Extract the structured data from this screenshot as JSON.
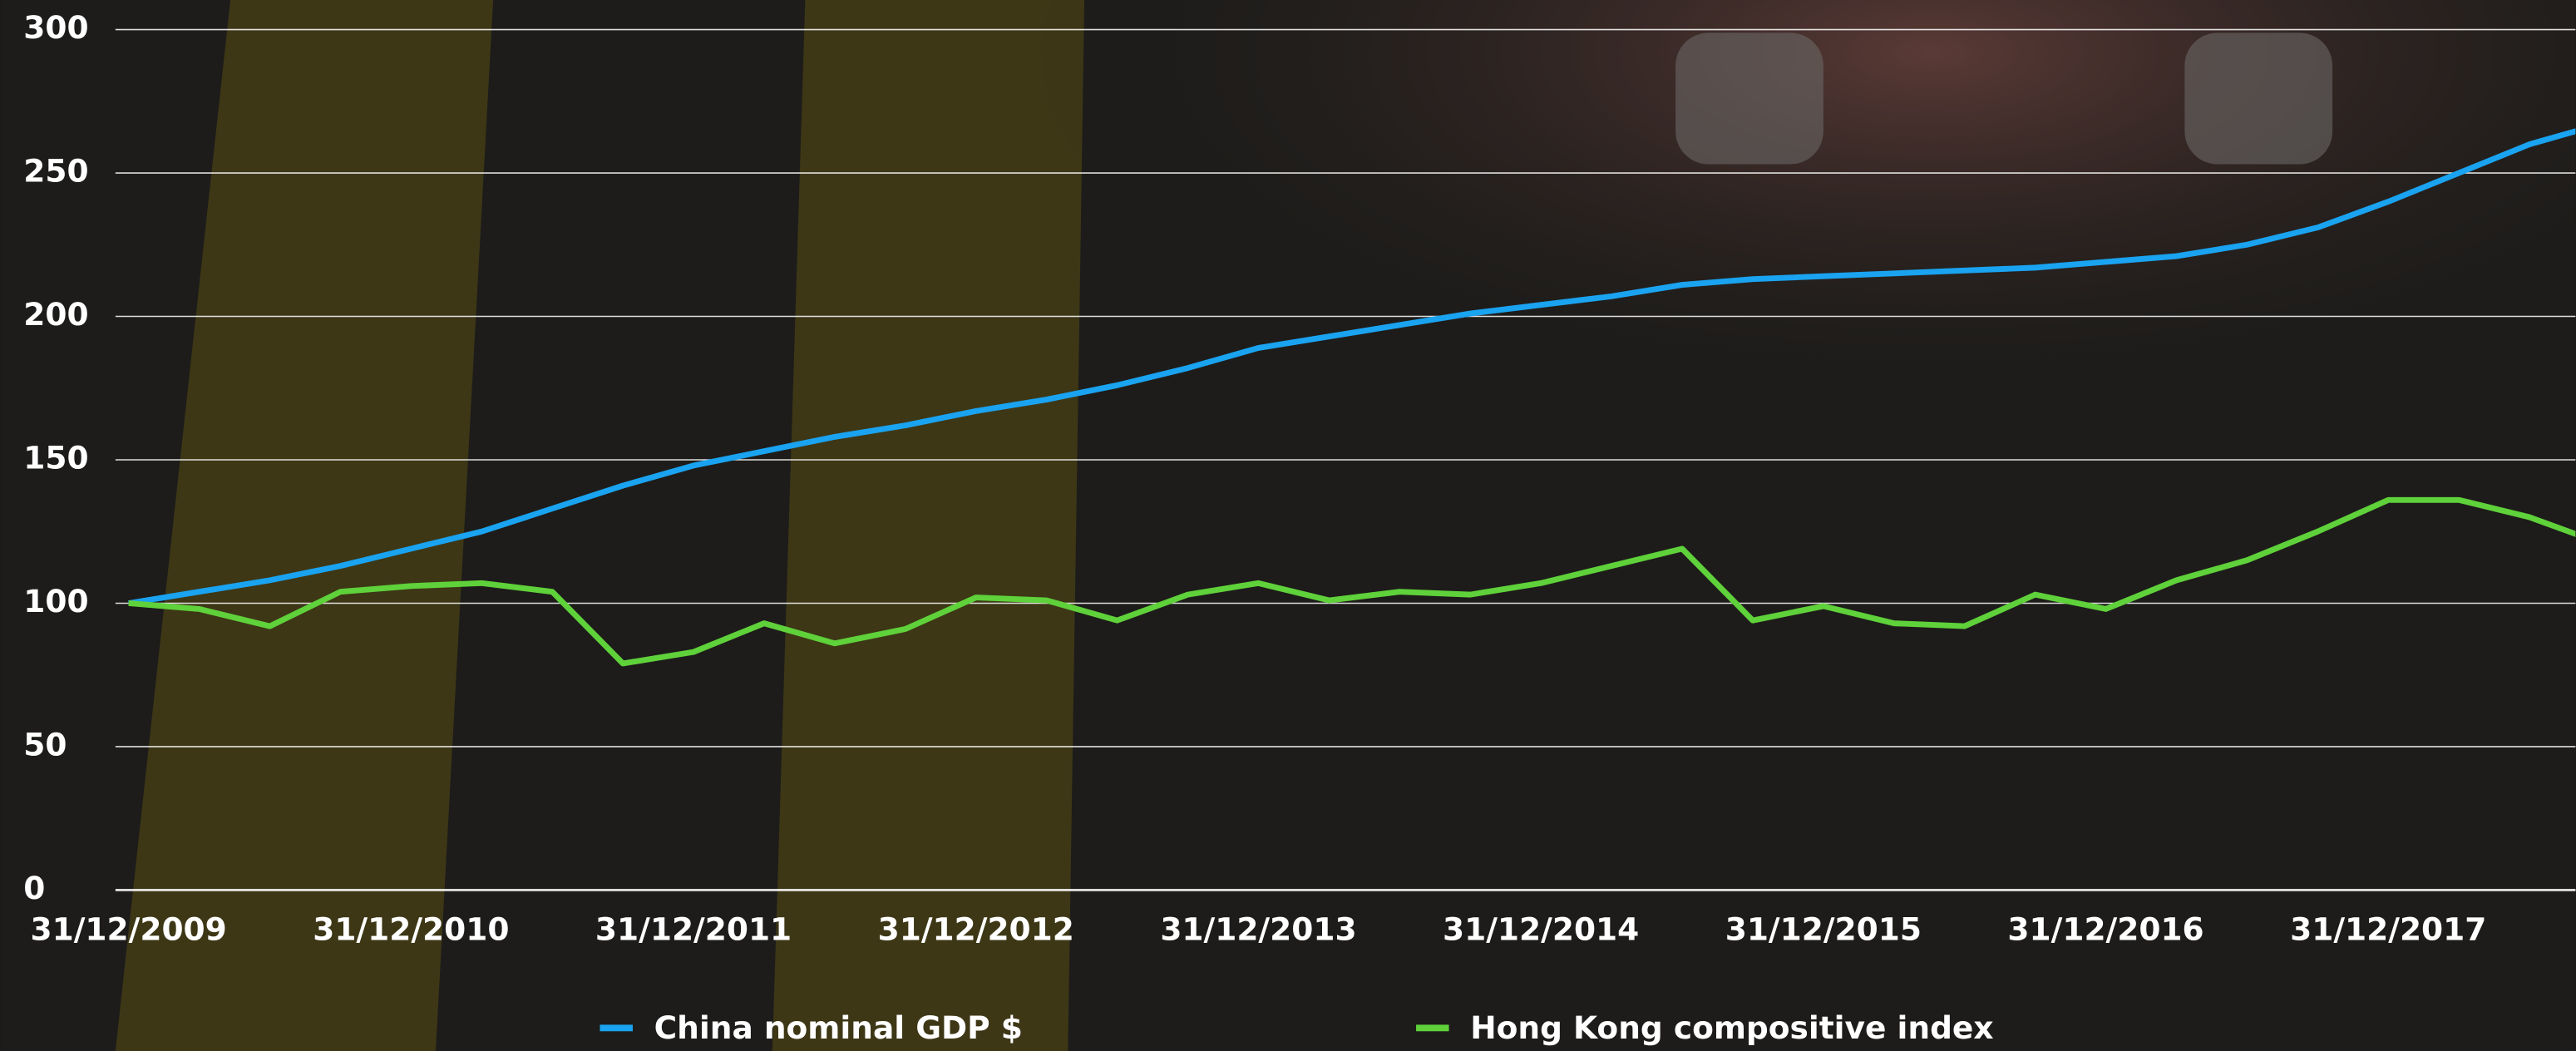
{
  "chart_data": {
    "type": "line",
    "categories": [
      "31/12/2009",
      null,
      null,
      null,
      "31/12/2010",
      null,
      null,
      null,
      "31/12/2011",
      null,
      null,
      null,
      "31/12/2012",
      null,
      null,
      null,
      "31/12/2013",
      null,
      null,
      null,
      "31/12/2014",
      null,
      null,
      null,
      "31/12/2015",
      null,
      null,
      null,
      "31/12/2016",
      null,
      null,
      null,
      "31/12/2017",
      null,
      null,
      null
    ],
    "series": [
      {
        "name": "China nominal GDP $",
        "color": "#1aa3f0",
        "values": [
          100,
          104,
          108,
          113,
          119,
          125,
          133,
          141,
          148,
          153,
          158,
          162,
          167,
          171,
          176,
          182,
          189,
          193,
          197,
          201,
          204,
          207,
          211,
          213,
          214,
          215,
          216,
          217,
          219,
          221,
          225,
          231,
          240,
          250,
          260,
          267
        ]
      },
      {
        "name": "Hong Kong compositive index",
        "color": "#5fd13a",
        "values": [
          100,
          98,
          92,
          104,
          106,
          107,
          104,
          79,
          83,
          93,
          86,
          91,
          102,
          101,
          94,
          103,
          107,
          101,
          104,
          103,
          107,
          113,
          119,
          94,
          99,
          93,
          92,
          103,
          98,
          108,
          115,
          125,
          136,
          136,
          130,
          121
        ]
      }
    ],
    "ylim": [
      0,
      300
    ],
    "yticks": [
      0,
      50,
      100,
      150,
      200,
      250,
      300
    ],
    "grid": true,
    "legend": "bottom"
  }
}
